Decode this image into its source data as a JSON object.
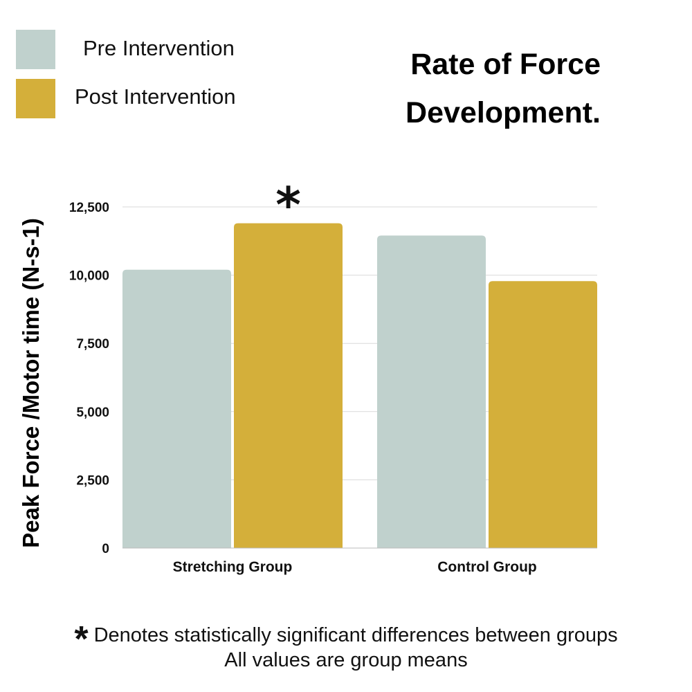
{
  "legend": [
    {
      "label": "Pre Intervention",
      "color": "#c0d1cd"
    },
    {
      "label": "Post Intervention",
      "color": "#d4af3a"
    }
  ],
  "title_line1": "Rate of Force",
  "title_line2": "Development.",
  "chart_data": {
    "type": "bar",
    "title": "Rate of Force Development.",
    "ylabel": "Peak Force /Motor time (N-s-1)",
    "xlabel": "",
    "categories": [
      "Stretching Group",
      "Control Group"
    ],
    "series": [
      {
        "name": "Pre Intervention",
        "values": [
          10200,
          11450
        ],
        "color": "#c0d1cd"
      },
      {
        "name": "Post Intervention",
        "values": [
          11900,
          9780
        ],
        "color": "#d4af3a"
      }
    ],
    "ylim": [
      0,
      12500
    ],
    "yticks": [
      0,
      2500,
      5000,
      7500,
      10000,
      12500
    ],
    "ytick_labels": [
      "0",
      "2,500",
      "5,000",
      "7,500",
      "10,000",
      "12,500"
    ],
    "grid": true,
    "annotations": [
      {
        "text": "*",
        "category": "Stretching Group",
        "series": "Post Intervention"
      }
    ]
  },
  "footnote": {
    "star": "*",
    "significance": "Denotes statistically significant differences between groups",
    "means": "All values are group means"
  }
}
